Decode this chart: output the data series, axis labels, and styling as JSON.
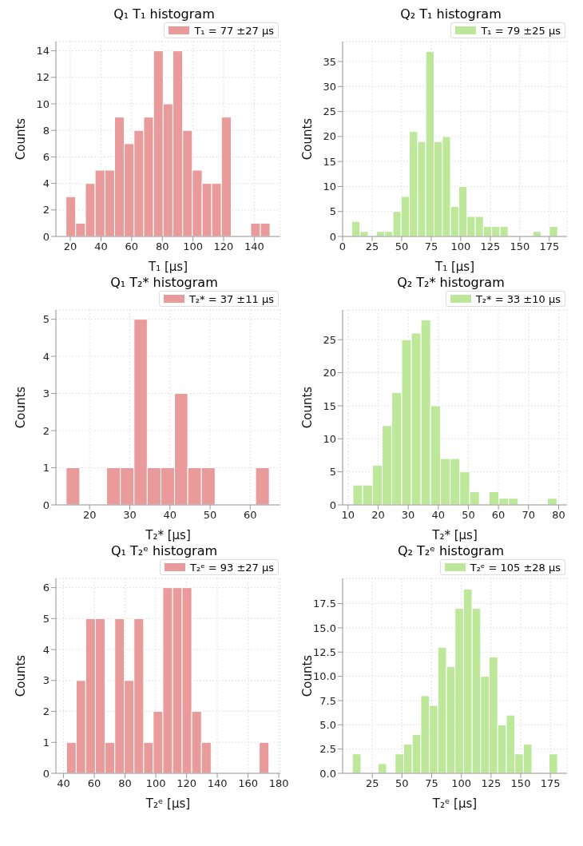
{
  "chart_data": [
    {
      "type": "histogram",
      "title": "Q₁ T₁ histogram",
      "xlabel": "T₁ [μs]",
      "ylabel": "Counts",
      "legend": "top right",
      "grid": true,
      "bins": [
        17.1,
        23.4,
        29.8,
        36.1,
        42.5,
        48.8,
        55.1,
        61.5,
        67.8,
        74.2,
        80.5,
        86.8,
        93.2,
        99.5,
        105.9,
        112.2,
        118.5,
        124.9,
        131.2,
        137.6,
        143.9,
        150.2
      ],
      "series": [
        {
          "name": "T₁ = 77 ±27 μs",
          "color": "#e99a9b",
          "values": [
            3,
            1,
            4,
            5,
            5,
            9,
            7,
            8,
            9,
            14,
            10,
            14,
            8,
            5,
            4,
            4,
            9,
            0,
            0,
            1,
            1
          ]
        }
      ],
      "xlim": [
        10.6,
        157
      ],
      "xticks": [
        20,
        40,
        60,
        80,
        100,
        120,
        140
      ],
      "ylim": [
        0,
        14.7
      ],
      "yticks": [
        0,
        2,
        4,
        6,
        8,
        10,
        12,
        14
      ]
    },
    {
      "type": "histogram",
      "title": "Q₂ T₁ histogram",
      "xlabel": "T₁ [μs]",
      "ylabel": "Counts",
      "legend": "top right",
      "grid": true,
      "bins": [
        7.8,
        14.8,
        21.7,
        28.7,
        35.7,
        42.7,
        49.6,
        56.6,
        63.6,
        70.5,
        77.5,
        84.5,
        91.4,
        98.4,
        105.4,
        112.4,
        119.3,
        126.3,
        133.3,
        140.2,
        147.2,
        154.2,
        161.1,
        168.1,
        175.1,
        182.1
      ],
      "series": [
        {
          "name": "T₁ = 79 ±25 μs",
          "color": "#bde89a",
          "values": [
            3,
            1,
            0,
            1,
            1,
            5,
            8,
            21,
            19,
            37,
            19,
            20,
            6,
            10,
            4,
            4,
            2,
            2,
            2,
            0,
            0,
            0,
            1,
            0,
            2
          ]
        }
      ],
      "xlim": [
        0,
        190
      ],
      "xticks": [
        0,
        25,
        50,
        75,
        100,
        125,
        150,
        175
      ],
      "ylim": [
        0,
        39
      ],
      "yticks": [
        0,
        5,
        10,
        15,
        20,
        25,
        30,
        35
      ]
    },
    {
      "type": "histogram",
      "title": "Q₁ T₂* histogram",
      "xlabel": "T₂* [μs]",
      "ylabel": "Counts",
      "legend": "top right",
      "grid": true,
      "bins": [
        14.2,
        17.6,
        24.3,
        27.7,
        31.1,
        34.4,
        37.8,
        41.2,
        44.5,
        47.9,
        51.3,
        61.4,
        64.8
      ],
      "series": [
        {
          "name": "T₂* = 37 ±11 μs",
          "color": "#e99a9b",
          "values": [
            1,
            0,
            1,
            1,
            5,
            1,
            1,
            3,
            1,
            1,
            0,
            1
          ]
        }
      ],
      "xlim": [
        11.6,
        67.5
      ],
      "xticks": [
        20,
        30,
        40,
        50,
        60
      ],
      "ylim": [
        0,
        5.25
      ],
      "yticks": [
        0,
        1,
        2,
        3,
        4,
        5
      ]
    },
    {
      "type": "histogram",
      "title": "Q₂ T₂* histogram",
      "xlabel": "T₂* [μs]",
      "ylabel": "Counts",
      "legend": "top right",
      "grid": true,
      "bins": [
        11.6,
        14.8,
        18.1,
        21.3,
        24.5,
        27.8,
        31.0,
        34.2,
        37.4,
        40.7,
        43.9,
        47.1,
        50.4,
        53.6,
        56.8,
        60.1,
        63.3,
        66.5,
        69.7,
        73.0,
        76.2,
        79.4
      ],
      "series": [
        {
          "name": "T₂* = 33 ±10 μs",
          "color": "#bde89a",
          "values": [
            3,
            3,
            6,
            12,
            17,
            25,
            26,
            28,
            15,
            7,
            7,
            5,
            2,
            0,
            2,
            1,
            1,
            0,
            0,
            0,
            1
          ]
        }
      ],
      "xlim": [
        8.2,
        82.8
      ],
      "xticks": [
        10,
        20,
        30,
        40,
        50,
        60,
        70,
        80
      ],
      "ylim": [
        0,
        29.5
      ],
      "yticks": [
        0,
        5,
        10,
        15,
        20,
        25
      ]
    },
    {
      "type": "histogram",
      "title": "Q₁ T₂ᵉ histogram",
      "xlabel": "T₂ᵉ [μs]",
      "ylabel": "Counts",
      "legend": "top right",
      "grid": true,
      "bins": [
        41.8,
        48.1,
        54.3,
        60.6,
        66.9,
        73.2,
        79.4,
        85.7,
        92.0,
        98.2,
        104.5,
        110.8,
        117.0,
        123.3,
        129.6,
        135.9,
        142.1,
        148.4,
        154.7,
        160.9,
        167.2,
        173.5
      ],
      "series": [
        {
          "name": "T₂ᵉ  =  93 ±27 μs",
          "color": "#e99a9b",
          "values": [
            1,
            3,
            5,
            5,
            1,
            5,
            3,
            5,
            1,
            2,
            6,
            6,
            6,
            2,
            1,
            0,
            0,
            0,
            0,
            0,
            1
          ]
        }
      ],
      "xlim": [
        35,
        181
      ],
      "xticks": [
        40,
        60,
        80,
        100,
        120,
        140,
        160,
        180
      ],
      "ylim": [
        0,
        6.3
      ],
      "yticks": [
        0,
        1,
        2,
        3,
        4,
        5,
        6
      ]
    },
    {
      "type": "histogram",
      "title": "Q₂ T₂ᵉ histogram",
      "xlabel": "T₂ᵉ [μs]",
      "ylabel": "Counts",
      "legend": "top right",
      "grid": true,
      "bins": [
        8.1,
        15.3,
        22.5,
        29.7,
        36.9,
        44.1,
        51.3,
        58.5,
        65.7,
        72.9,
        80.1,
        87.3,
        94.5,
        101.7,
        108.9,
        116.1,
        123.3,
        130.5,
        137.7,
        144.9,
        152.1,
        159.3,
        166.5,
        173.7,
        180.9
      ],
      "series": [
        {
          "name": "T₂ᵉ  =  105 ±28 μs",
          "color": "#bde89a",
          "values": [
            2,
            0,
            0,
            1,
            0,
            2,
            3,
            4,
            8,
            7,
            13,
            11,
            17,
            19,
            17,
            10,
            12,
            5,
            6,
            2,
            3,
            0,
            0,
            2
          ]
        }
      ],
      "xlim": [
        0,
        189
      ],
      "xticks": [
        25,
        50,
        75,
        100,
        125,
        150,
        175
      ],
      "ylim": [
        0,
        20.1
      ],
      "yticks": [
        {
          "value": 0,
          "label": "0.0"
        },
        2.5,
        {
          "value": 5,
          "label": "5.0"
        },
        7.5,
        {
          "value": 10,
          "label": "10.0"
        },
        12.5,
        {
          "value": 15,
          "label": "15.0"
        },
        17.5
      ]
    }
  ]
}
